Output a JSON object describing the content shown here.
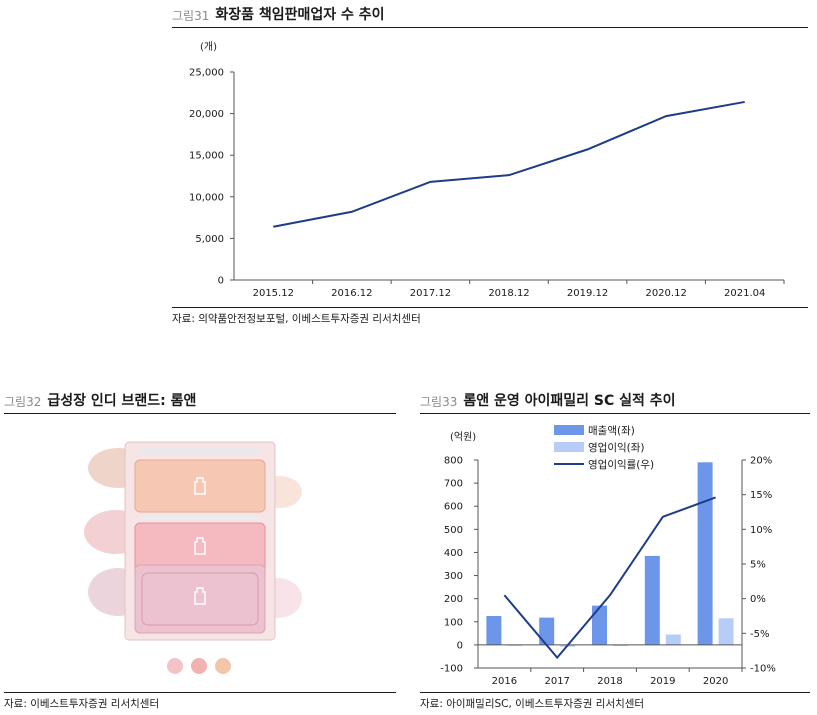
{
  "fig31": {
    "label": "그림31",
    "title": "화장품 책임판매업자 수 추이",
    "source": "자료: 의약품안전정보포털, 이베스트투자증권 리서치센터",
    "chart_data": {
      "type": "line",
      "unit": "(개)",
      "categories": [
        "2015.12",
        "2016.12",
        "2017.12",
        "2018.12",
        "2019.12",
        "2020.12",
        "2021.04"
      ],
      "series": [
        {
          "values": [
            6400,
            8200,
            11800,
            12600,
            15700,
            19700,
            21400
          ]
        }
      ],
      "ylim": [
        0,
        25000
      ],
      "yticks": [
        0,
        5000,
        10000,
        15000,
        20000,
        25000
      ],
      "ytick_labels": [
        "0",
        "5,000",
        "10,000",
        "15,000",
        "20,000",
        "25,000"
      ],
      "line_color": "#1f3c88"
    }
  },
  "fig32": {
    "label": "그림32",
    "title": "급성장 인디 브랜드: 롬앤",
    "source": "자료: 이베스트투자증권 리서치센터",
    "palette_colors": [
      "#f6c7b3",
      "#f5b9c0",
      "#ecc2d1"
    ],
    "swatch_colors": [
      "#f2c4c8",
      "#f3b2b2",
      "#f3c6aa"
    ]
  },
  "fig33": {
    "label": "그림33",
    "title": "롬앤 운영 아이패밀리 SC 실적 추이",
    "source": "자료: 아이패밀리SC, 이베스트투자증권 리서치센터",
    "chart_data": {
      "type": "bar",
      "left_unit": "(억원)",
      "categories": [
        "2016",
        "2017",
        "2018",
        "2019",
        "2020"
      ],
      "series": [
        {
          "name": "매출액(좌)",
          "type": "bar",
          "axis": "left",
          "color": "#6b96ea",
          "values": [
            125,
            118,
            170,
            385,
            790
          ]
        },
        {
          "name": "영업이익(좌)",
          "type": "bar",
          "axis": "left",
          "color": "#b7cdf7",
          "values": [
            -2,
            -8,
            -5,
            45,
            115
          ]
        },
        {
          "name": "영업이익률(우)",
          "type": "line",
          "axis": "right",
          "color": "#1f3c88",
          "values": [
            0.5,
            -8.5,
            0.5,
            11.8,
            14.6
          ]
        }
      ],
      "left_ylim": [
        -100,
        800
      ],
      "left_yticks": [
        -100,
        0,
        100,
        200,
        300,
        400,
        500,
        600,
        700,
        800
      ],
      "right_ylim": [
        -10,
        20
      ],
      "right_yticks": [
        -10,
        -5,
        0,
        5,
        10,
        15,
        20
      ],
      "right_tick_labels": [
        "-10%",
        "-5%",
        "0%",
        "5%",
        "10%",
        "15%",
        "20%"
      ]
    }
  }
}
